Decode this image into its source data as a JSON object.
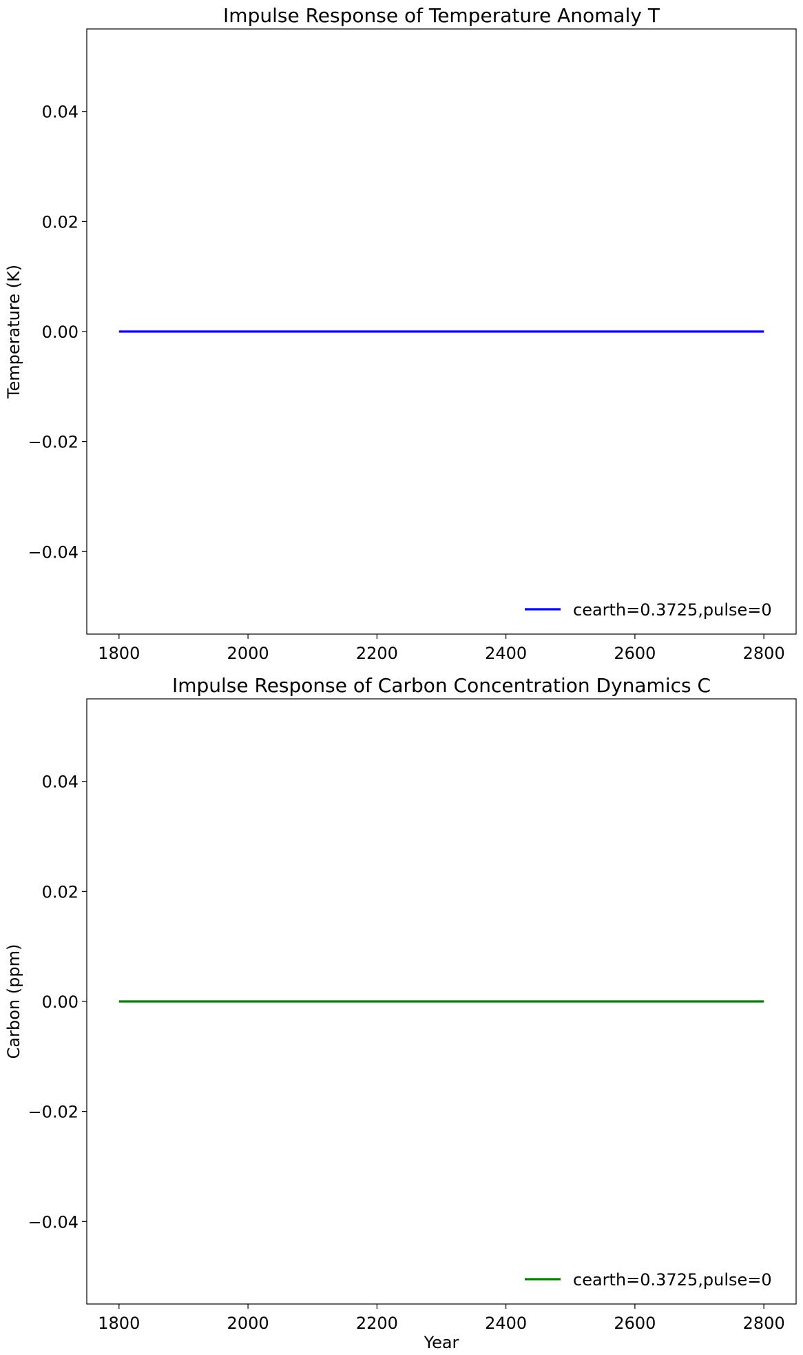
{
  "chart_data": [
    {
      "type": "line",
      "title": "Impulse Response of Temperature Anomaly T",
      "xlabel": "",
      "ylabel": "Temperature (K)",
      "xlim": [
        1750,
        2850
      ],
      "ylim": [
        -0.055,
        0.055
      ],
      "xticks": [
        1800,
        2000,
        2200,
        2400,
        2600,
        2800
      ],
      "yticks": [
        -0.04,
        -0.02,
        0.0,
        0.02,
        0.04
      ],
      "ytick_labels": [
        "−0.04",
        "−0.02",
        "0.00",
        "0.02",
        "0.04"
      ],
      "grid": false,
      "legend_position": "lower-right",
      "series": [
        {
          "name": "cearth=0.3725,pulse=0",
          "color": "#0000ff",
          "x": [
            1800,
            2800
          ],
          "y": [
            0,
            0
          ]
        }
      ]
    },
    {
      "type": "line",
      "title": "Impulse Response of Carbon Concentration Dynamics C",
      "xlabel": "Year",
      "ylabel": "Carbon (ppm)",
      "xlim": [
        1750,
        2850
      ],
      "ylim": [
        -0.055,
        0.055
      ],
      "xticks": [
        1800,
        2000,
        2200,
        2400,
        2600,
        2800
      ],
      "yticks": [
        -0.04,
        -0.02,
        0.0,
        0.02,
        0.04
      ],
      "ytick_labels": [
        "−0.04",
        "−0.02",
        "0.00",
        "0.02",
        "0.04"
      ],
      "grid": false,
      "legend_position": "lower-right",
      "series": [
        {
          "name": "cearth=0.3725,pulse=0",
          "color": "#008000",
          "x": [
            1800,
            2800
          ],
          "y": [
            0,
            0
          ]
        }
      ]
    }
  ]
}
